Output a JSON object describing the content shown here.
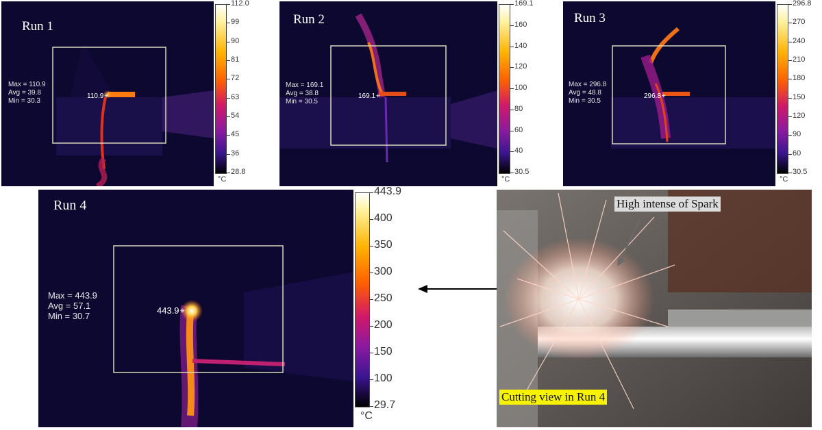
{
  "runs": [
    {
      "title": "Run 1",
      "stats": "Max = 110.9\nAvg = 39.8\nMin = 30.3",
      "spot": "110.9",
      "scale": [
        "112.0",
        "99",
        "90",
        "81",
        "72",
        "63",
        "54",
        "45",
        "36",
        "28.8"
      ],
      "unit": "°C"
    },
    {
      "title": "Run 2",
      "stats": "Max = 169.1\nAvg = 38.8\nMin = 30.5",
      "spot": "169.1",
      "scale": [
        "169.1",
        "160",
        "140",
        "120",
        "100",
        "80",
        "60",
        "40",
        "30.5"
      ],
      "unit": "°C"
    },
    {
      "title": "Run 3",
      "stats": "Max = 296.8\nAvg = 48.8\nMin = 30.5",
      "spot": "296.8",
      "scale": [
        "296.8",
        "270",
        "240",
        "210",
        "180",
        "150",
        "120",
        "90",
        "60",
        "30.5"
      ],
      "unit": "°C"
    },
    {
      "title": "Run 4",
      "stats": "Max = 443.9\nAvg = 57.1\nMin = 30.7",
      "spot": "443.9",
      "scale": [
        "443.9",
        "400",
        "350",
        "300",
        "250",
        "200",
        "150",
        "100",
        "29.7"
      ],
      "unit": "°C"
    }
  ],
  "photo": {
    "spark_label": "High intense of Spark",
    "caption": "Cutting view in Run 4"
  },
  "colors": {
    "thermal_bg": "#0c0830",
    "callout_yellow": "#f7f300",
    "callout_gray": "#dcdcdc"
  }
}
